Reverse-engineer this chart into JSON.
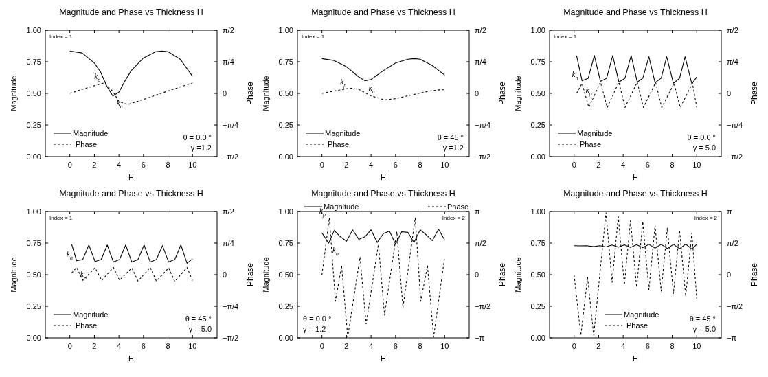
{
  "chart_data": [
    {
      "type": "line",
      "title": "Magnitude and Phase  vs Thickness H",
      "xlabel": "H",
      "ylabel": "Magnitude",
      "y2label": "Phase",
      "xlim": [
        -2,
        12
      ],
      "xticks": [
        0,
        2,
        4,
        6,
        8,
        10
      ],
      "ylim": [
        0,
        1
      ],
      "yticks": [
        {
          "value": 0,
          "label": "0.00"
        },
        {
          "value": 0.25,
          "label": "0.25"
        },
        {
          "value": 0.5,
          "label": "0.50"
        },
        {
          "value": 0.75,
          "label": "0.75"
        },
        {
          "value": 1,
          "label": "1.00"
        }
      ],
      "y2lim": [
        -1.5708,
        1.5708
      ],
      "y2ticks": [
        {
          "value": -1.5708,
          "label": "−π/2"
        },
        {
          "value": -0.7854,
          "label": "−π/4"
        },
        {
          "value": 0,
          "label": "0"
        },
        {
          "value": 0.7854,
          "label": "π/4"
        },
        {
          "value": 1.5708,
          "label": "π/2"
        }
      ],
      "legend": "bottom left",
      "series": [
        {
          "name": "Magnitude",
          "color": "#000000",
          "line_style": "solid",
          "x": [
            0,
            1,
            2,
            2.5,
            3,
            3.5,
            4,
            4.5,
            5,
            6,
            7,
            7.5,
            8,
            9,
            10
          ],
          "values": [
            0.835,
            0.82,
            0.74,
            0.67,
            0.56,
            0.48,
            0.51,
            0.6,
            0.68,
            0.78,
            0.83,
            0.835,
            0.83,
            0.77,
            0.635
          ]
        },
        {
          "name": "Phase",
          "color": "#000000",
          "line_style": "dashed",
          "axis": "y2",
          "x": [
            0,
            1,
            2,
            2.8,
            3.5,
            4,
            4.7,
            6,
            8,
            10
          ],
          "values": [
            0,
            0.1,
            0.19,
            0.26,
            0.05,
            -0.2,
            -0.28,
            -0.15,
            0.06,
            0.26
          ]
        }
      ],
      "annotations": [
        "Index = 1",
        "θ = 0.0 °",
        "γ =1.2",
        {
          "text": "k$_{p}$",
          "x": 2.8,
          "y": 0.58
        },
        {
          "text": "k$_{n}$",
          "x": 3.5,
          "y": 0.48
        }
      ]
    },
    {
      "type": "line",
      "title": "Magnitude and Phase  vs Thickness H",
      "xlabel": "H",
      "ylabel": "Magnitude",
      "y2label": "Phase",
      "xlim": [
        -2,
        12
      ],
      "xticks": [
        0,
        2,
        4,
        6,
        8,
        10
      ],
      "ylim": [
        0,
        1
      ],
      "yticks": [
        {
          "value": 0,
          "label": "0.00"
        },
        {
          "value": 0.25,
          "label": "0.25"
        },
        {
          "value": 0.5,
          "label": "0.50"
        },
        {
          "value": 0.75,
          "label": "0.75"
        },
        {
          "value": 1,
          "label": "1.00"
        }
      ],
      "y2lim": [
        -1.5708,
        1.5708
      ],
      "y2ticks": [
        {
          "value": -1.5708,
          "label": "−π/2"
        },
        {
          "value": -0.7854,
          "label": "−π/4"
        },
        {
          "value": 0,
          "label": "0"
        },
        {
          "value": 0.7854,
          "label": "π/4"
        },
        {
          "value": 1.5708,
          "label": "π/2"
        }
      ],
      "legend": "bottom left",
      "series": [
        {
          "name": "Magnitude",
          "color": "#000000",
          "line_style": "solid",
          "x": [
            0,
            1,
            2,
            3,
            3.5,
            4,
            5,
            6,
            7,
            7.5,
            8,
            9,
            10
          ],
          "values": [
            0.775,
            0.76,
            0.71,
            0.63,
            0.6,
            0.61,
            0.68,
            0.74,
            0.77,
            0.775,
            0.77,
            0.72,
            0.645
          ]
        },
        {
          "name": "Phase",
          "color": "#000000",
          "line_style": "dashed",
          "axis": "y2",
          "x": [
            0,
            1,
            2.3,
            3,
            4,
            5.1,
            6,
            7,
            8,
            9,
            9.7,
            10
          ],
          "values": [
            0,
            0.06,
            0.13,
            0.1,
            -0.06,
            -0.16,
            -0.13,
            -0.06,
            0.01,
            0.07,
            0.09,
            0.09
          ]
        }
      ],
      "annotations": [
        "Index = 1",
        "θ = 45 °",
        "γ =1.2",
        {
          "text": "k$_{p}$",
          "x": 2.3,
          "y": 0.54
        },
        {
          "text": "k$_{n}$",
          "x": 3.5,
          "y": 0.6
        }
      ]
    },
    {
      "type": "line",
      "title": "Magnitude and Phase  vs Thickness H",
      "xlabel": "H",
      "ylabel": "Magnitude",
      "y2label": "Phase",
      "xlim": [
        -2,
        12
      ],
      "xticks": [
        0,
        2,
        4,
        6,
        8,
        10
      ],
      "ylim": [
        0,
        1
      ],
      "yticks": [
        {
          "value": 0,
          "label": "0.00"
        },
        {
          "value": 0.25,
          "label": "0.25"
        },
        {
          "value": 0.5,
          "label": "0.50"
        },
        {
          "value": 0.75,
          "label": "0.75"
        },
        {
          "value": 1,
          "label": "1.00"
        }
      ],
      "y2lim": [
        -1.5708,
        1.5708
      ],
      "y2ticks": [
        {
          "value": -1.5708,
          "label": "−π/2"
        },
        {
          "value": -0.7854,
          "label": "−π/4"
        },
        {
          "value": 0,
          "label": "0"
        },
        {
          "value": 0.7854,
          "label": "π/4"
        },
        {
          "value": 1.5708,
          "label": "π/2"
        }
      ],
      "legend": "bottom left",
      "series": [
        {
          "name": "Magnitude",
          "color": "#000000",
          "line_style": "solid",
          "x": [
            0.2,
            0.65,
            1.15,
            1.65,
            2.15,
            2.65,
            3.15,
            3.65,
            4.15,
            4.65,
            5.15,
            5.6,
            6.1,
            6.6,
            7.1,
            7.55,
            8.1,
            8.6,
            9.05,
            9.6,
            10
          ],
          "values": [
            0.8,
            0.6,
            0.62,
            0.8,
            0.595,
            0.62,
            0.8,
            0.59,
            0.62,
            0.8,
            0.59,
            0.62,
            0.79,
            0.585,
            0.62,
            0.79,
            0.58,
            0.62,
            0.79,
            0.575,
            0.63
          ]
        },
        {
          "name": "Phase",
          "color": "#000000",
          "line_style": "dashed",
          "axis": "y2",
          "x": [
            0.2,
            0.65,
            1.2,
            2.15,
            2.7,
            3.65,
            4.15,
            5.15,
            5.65,
            6.65,
            7.15,
            8.15,
            8.65,
            9.65,
            10
          ],
          "values": [
            0,
            0.25,
            -0.35,
            0.28,
            -0.35,
            0.28,
            -0.35,
            0.28,
            -0.35,
            0.27,
            -0.35,
            0.25,
            -0.35,
            0.25,
            -0.35
          ]
        }
      ],
      "annotations": [
        "Index = 1",
        "θ = 0.0 °",
        "γ = 5.0",
        {
          "text": "k$_{n}$",
          "x": 0.65,
          "y": 0.6
        },
        {
          "text": "k$_{p}$",
          "x": 0.65,
          "y": 0.58
        }
      ]
    },
    {
      "type": "line",
      "title": "Magnitude and Phase  vs Thickness H",
      "xlabel": "H",
      "ylabel": "Magnitude",
      "y2label": "Phase",
      "xlim": [
        -2,
        12
      ],
      "xticks": [
        0,
        2,
        4,
        6,
        8,
        10
      ],
      "ylim": [
        0,
        1
      ],
      "yticks": [
        {
          "value": 0,
          "label": "0.00"
        },
        {
          "value": 0.25,
          "label": "0.25"
        },
        {
          "value": 0.5,
          "label": "0.50"
        },
        {
          "value": 0.75,
          "label": "0.75"
        },
        {
          "value": 1,
          "label": "1.00"
        }
      ],
      "y2lim": [
        -1.5708,
        1.5708
      ],
      "y2ticks": [
        {
          "value": -1.5708,
          "label": "−π/2"
        },
        {
          "value": -0.7854,
          "label": "−π/4"
        },
        {
          "value": 0,
          "label": "0"
        },
        {
          "value": 0.7854,
          "label": "π/4"
        },
        {
          "value": 1.5708,
          "label": "π/2"
        }
      ],
      "legend": "bottom left",
      "series": [
        {
          "name": "Magnitude",
          "color": "#000000",
          "line_style": "solid",
          "x": [
            0.15,
            0.55,
            1.05,
            1.55,
            2.05,
            2.55,
            3.05,
            3.55,
            4.05,
            4.55,
            5.05,
            5.55,
            6.05,
            6.55,
            7.05,
            7.55,
            8.05,
            8.55,
            9.05,
            9.55,
            10
          ],
          "values": [
            0.74,
            0.61,
            0.62,
            0.735,
            0.605,
            0.62,
            0.735,
            0.6,
            0.62,
            0.735,
            0.6,
            0.62,
            0.735,
            0.6,
            0.62,
            0.73,
            0.6,
            0.62,
            0.735,
            0.59,
            0.625
          ]
        },
        {
          "name": "Phase",
          "color": "#000000",
          "line_style": "dashed",
          "axis": "y2",
          "x": [
            0.15,
            0.55,
            1.05,
            2.05,
            2.6,
            3.55,
            4.05,
            5.05,
            5.55,
            6.55,
            7.05,
            8.05,
            8.55,
            9.55,
            10
          ],
          "values": [
            0.04,
            0.18,
            -0.14,
            0.17,
            -0.14,
            0.18,
            -0.14,
            0.17,
            -0.16,
            0.18,
            -0.16,
            0.17,
            -0.17,
            0.18,
            -0.15
          ]
        }
      ],
      "annotations": [
        "Index = 1",
        "θ = 45 °",
        "γ = 5.0",
        {
          "text": "k$_{n}$",
          "x": 0.55,
          "y": 0.61
        },
        {
          "text": "k$_{p}$",
          "x": 0.55,
          "y": 0.56
        }
      ]
    },
    {
      "type": "line",
      "title": "Magnitude and Phase  vs Thickness H",
      "xlabel": "H",
      "ylabel": "Magnitude",
      "y2label": "Phase",
      "xlim": [
        -2,
        12
      ],
      "xticks": [
        0,
        2,
        4,
        6,
        8,
        10
      ],
      "ylim": [
        0,
        1
      ],
      "yticks": [
        {
          "value": 0,
          "label": "0.00"
        },
        {
          "value": 0.25,
          "label": "0.25"
        },
        {
          "value": 0.5,
          "label": "0.50"
        },
        {
          "value": 0.75,
          "label": "0.75"
        },
        {
          "value": 1,
          "label": "1.00"
        }
      ],
      "y2lim": [
        -3.1416,
        3.1416
      ],
      "y2ticks": [
        {
          "value": -3.1416,
          "label": "−π"
        },
        {
          "value": -1.5708,
          "label": "−π/2"
        },
        {
          "value": 0,
          "label": "0"
        },
        {
          "value": 1.5708,
          "label": "π/2"
        },
        {
          "value": 3.1416,
          "label": "π"
        }
      ],
      "legend": "top",
      "series": [
        {
          "name": "Magnitude",
          "color": "#000000",
          "line_style": "solid",
          "x": [
            0,
            0.55,
            1,
            1.5,
            2,
            2.5,
            3,
            3.5,
            4,
            4.5,
            5,
            5.5,
            6,
            6.5,
            7,
            7.5,
            8,
            8.5,
            9,
            9.5,
            10
          ],
          "values": [
            0.83,
            0.75,
            0.85,
            0.8,
            0.765,
            0.855,
            0.78,
            0.8,
            0.855,
            0.755,
            0.825,
            0.845,
            0.74,
            0.84,
            0.835,
            0.755,
            0.855,
            0.815,
            0.77,
            0.86,
            0.775
          ]
        },
        {
          "name": "Phase",
          "color": "#000000",
          "line_style": "dashed",
          "axis": "y2",
          "x": [
            0,
            0.6,
            1.1,
            1.6,
            2.1,
            3.1,
            3.6,
            4.6,
            5.1,
            6.1,
            6.6,
            7.6,
            8.05,
            8.6,
            9.1,
            10
          ],
          "values": [
            0,
            2.83,
            -1.32,
            0.44,
            -3.1,
            0.88,
            -2.45,
            1.51,
            -2.01,
            2.14,
            -1.63,
            2.83,
            -1.32,
            0.44,
            -3.1,
            0.88
          ]
        }
      ],
      "annotations": [
        "Index = 2",
        "θ = 0.0 °",
        "γ = 1.2",
        {
          "text": "k$_{p}$",
          "x": 0.6,
          "y": 0.95
        },
        {
          "text": "k$_{n}$",
          "x": 0.55,
          "y": 0.75
        }
      ]
    },
    {
      "type": "line",
      "title": "Magnitude and Phase  vs Thickness H",
      "xlabel": "H",
      "ylabel": "Magnitude",
      "y2label": "Phase",
      "xlim": [
        -2,
        12
      ],
      "xticks": [
        0,
        2,
        4,
        6,
        8,
        10
      ],
      "ylim": [
        0,
        1
      ],
      "yticks": [
        {
          "value": 0,
          "label": "0.00"
        },
        {
          "value": 0.25,
          "label": "0.25"
        },
        {
          "value": 0.5,
          "label": "0.50"
        },
        {
          "value": 0.75,
          "label": "0.75"
        },
        {
          "value": 1,
          "label": "1.00"
        }
      ],
      "y2lim": [
        -3.1416,
        3.1416
      ],
      "y2ticks": [
        {
          "value": -3.1416,
          "label": "−π"
        },
        {
          "value": -1.5708,
          "label": "−π/2"
        },
        {
          "value": 0,
          "label": "0"
        },
        {
          "value": 1.5708,
          "label": "π/2"
        },
        {
          "value": 3.1416,
          "label": "π"
        }
      ],
      "legend": "bottom right",
      "series": [
        {
          "name": "Magnitude",
          "color": "#000000",
          "line_style": "solid",
          "x": [
            0,
            0.5,
            1,
            1.6,
            2.1,
            2.6,
            3.1,
            3.6,
            4.1,
            4.6,
            5.1,
            5.6,
            6.1,
            6.6,
            7.1,
            7.6,
            8.1,
            8.6,
            9.1,
            9.6,
            10
          ],
          "values": [
            0.73,
            0.728,
            0.73,
            0.722,
            0.73,
            0.72,
            0.735,
            0.718,
            0.737,
            0.716,
            0.738,
            0.714,
            0.74,
            0.71,
            0.74,
            0.708,
            0.74,
            0.706,
            0.742,
            0.703,
            0.74
          ]
        },
        {
          "name": "Phase",
          "color": "#000000",
          "line_style": "dashed",
          "axis": "y2",
          "x": [
            0,
            0.55,
            1.1,
            1.6,
            2.6,
            3.1,
            3.6,
            4.1,
            4.6,
            5.1,
            5.6,
            6.1,
            6.6,
            7.1,
            7.6,
            8.1,
            8.6,
            9.1,
            9.6,
            10
          ],
          "values": [
            0,
            -3.02,
            -0.13,
            -3.02,
            3.08,
            -0.38,
            2.89,
            -0.5,
            2.7,
            -0.63,
            2.64,
            -0.75,
            2.45,
            -0.82,
            2.32,
            -0.94,
            2.2,
            -1.07,
            2.07,
            -1.19
          ]
        }
      ],
      "annotations": [
        "Index = 2",
        "θ = 45 °",
        "γ = 5.0"
      ]
    }
  ]
}
